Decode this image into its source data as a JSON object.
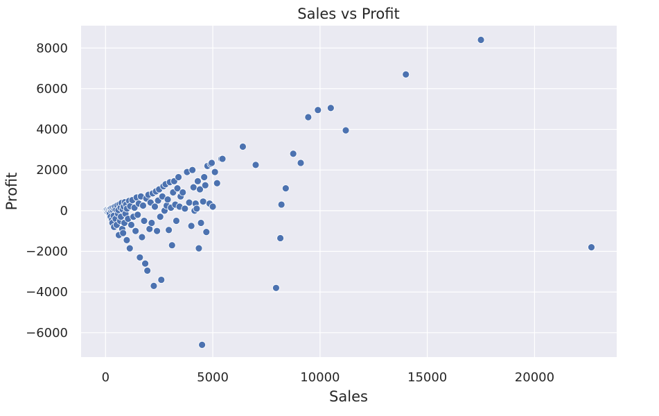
{
  "chart_data": {
    "type": "scatter",
    "title": "Sales vs Profit",
    "xlabel": "Sales",
    "ylabel": "Profit",
    "xlim": [
      -1140,
      23830
    ],
    "ylim": [
      -7200,
      9100
    ],
    "xticks": [
      0,
      5000,
      10000,
      15000,
      20000
    ],
    "xtick_labels": [
      "0",
      "5000",
      "10000",
      "15000",
      "20000"
    ],
    "yticks": [
      -6000,
      -4000,
      -2000,
      0,
      2000,
      4000,
      6000,
      8000
    ],
    "ytick_labels": [
      "−6000",
      "−4000",
      "−2000",
      "0",
      "2000",
      "4000",
      "6000",
      "8000"
    ],
    "grid": true,
    "legend": "none",
    "colors": {
      "point": "#4c72b0",
      "background": "#eaeaf2",
      "grid": "#ffffff"
    },
    "points": [
      [
        30,
        20
      ],
      [
        60,
        -10
      ],
      [
        80,
        40
      ],
      [
        120,
        10
      ],
      [
        150,
        -30
      ],
      [
        180,
        60
      ],
      [
        200,
        -150
      ],
      [
        220,
        80
      ],
      [
        240,
        -300
      ],
      [
        260,
        30
      ],
      [
        280,
        120
      ],
      [
        300,
        -450
      ],
      [
        320,
        -600
      ],
      [
        340,
        40
      ],
      [
        360,
        150
      ],
      [
        380,
        -250
      ],
      [
        400,
        -800
      ],
      [
        420,
        90
      ],
      [
        450,
        200
      ],
      [
        470,
        -400
      ],
      [
        500,
        60
      ],
      [
        520,
        -700
      ],
      [
        550,
        260
      ],
      [
        580,
        -150
      ],
      [
        600,
        30
      ],
      [
        620,
        -1200
      ],
      [
        650,
        310
      ],
      [
        680,
        -500
      ],
      [
        700,
        150
      ],
      [
        720,
        -300
      ],
      [
        750,
        380
      ],
      [
        780,
        -900
      ],
      [
        800,
        60
      ],
      [
        820,
        -1100
      ],
      [
        850,
        200
      ],
      [
        880,
        -600
      ],
      [
        900,
        420
      ],
      [
        930,
        -150
      ],
      [
        960,
        300
      ],
      [
        990,
        -1450
      ],
      [
        1000,
        100
      ],
      [
        1050,
        -400
      ],
      [
        1100,
        480
      ],
      [
        1130,
        -1850
      ],
      [
        1150,
        220
      ],
      [
        1200,
        -700
      ],
      [
        1250,
        520
      ],
      [
        1300,
        -300
      ],
      [
        1350,
        150
      ],
      [
        1400,
        -1000
      ],
      [
        1450,
        650
      ],
      [
        1500,
        -200
      ],
      [
        1550,
        350
      ],
      [
        1600,
        -2300
      ],
      [
        1650,
        700
      ],
      [
        1700,
        -1300
      ],
      [
        1750,
        250
      ],
      [
        1800,
        -500
      ],
      [
        1850,
        -2600
      ],
      [
        1900,
        600
      ],
      [
        1950,
        -2950
      ],
      [
        2000,
        780
      ],
      [
        2050,
        -900
      ],
      [
        2100,
        400
      ],
      [
        2150,
        -600
      ],
      [
        2200,
        850
      ],
      [
        2250,
        -3700
      ],
      [
        2300,
        200
      ],
      [
        2350,
        950
      ],
      [
        2400,
        -1000
      ],
      [
        2450,
        500
      ],
      [
        2500,
        1050
      ],
      [
        2550,
        -300
      ],
      [
        2600,
        -3400
      ],
      [
        2650,
        700
      ],
      [
        2700,
        1200
      ],
      [
        2750,
        0
      ],
      [
        2800,
        1300
      ],
      [
        2850,
        250
      ],
      [
        2900,
        550
      ],
      [
        2950,
        -950
      ],
      [
        3000,
        1400
      ],
      [
        3050,
        150
      ],
      [
        3100,
        -1700
      ],
      [
        3150,
        900
      ],
      [
        3200,
        1450
      ],
      [
        3250,
        300
      ],
      [
        3300,
        -500
      ],
      [
        3350,
        1100
      ],
      [
        3400,
        1650
      ],
      [
        3450,
        200
      ],
      [
        3500,
        700
      ],
      [
        3600,
        900
      ],
      [
        3700,
        100
      ],
      [
        3800,
        1900
      ],
      [
        3900,
        400
      ],
      [
        4000,
        -750
      ],
      [
        4050,
        2000
      ],
      [
        4100,
        1150
      ],
      [
        4150,
        0
      ],
      [
        4200,
        350
      ],
      [
        4250,
        100
      ],
      [
        4300,
        1450
      ],
      [
        4350,
        -1850
      ],
      [
        4400,
        1050
      ],
      [
        4450,
        -600
      ],
      [
        4500,
        -6600
      ],
      [
        4550,
        450
      ],
      [
        4600,
        1650
      ],
      [
        4650,
        1250
      ],
      [
        4700,
        -1050
      ],
      [
        4750,
        2200
      ],
      [
        4850,
        350
      ],
      [
        4900,
        2300
      ],
      [
        4950,
        2350
      ],
      [
        5000,
        200
      ],
      [
        5100,
        1900
      ],
      [
        5200,
        1350
      ],
      [
        5400,
        2550
      ],
      [
        5450,
        2550
      ],
      [
        6400,
        3150
      ],
      [
        7000,
        2250
      ],
      [
        7950,
        -3800
      ],
      [
        8150,
        -1350
      ],
      [
        8200,
        300
      ],
      [
        8400,
        1100
      ],
      [
        8750,
        2800
      ],
      [
        9100,
        2350
      ],
      [
        9450,
        4600
      ],
      [
        9900,
        4950
      ],
      [
        10500,
        5050
      ],
      [
        11200,
        3950
      ],
      [
        14000,
        6700
      ],
      [
        17500,
        8400
      ],
      [
        22650,
        -1800
      ]
    ]
  }
}
